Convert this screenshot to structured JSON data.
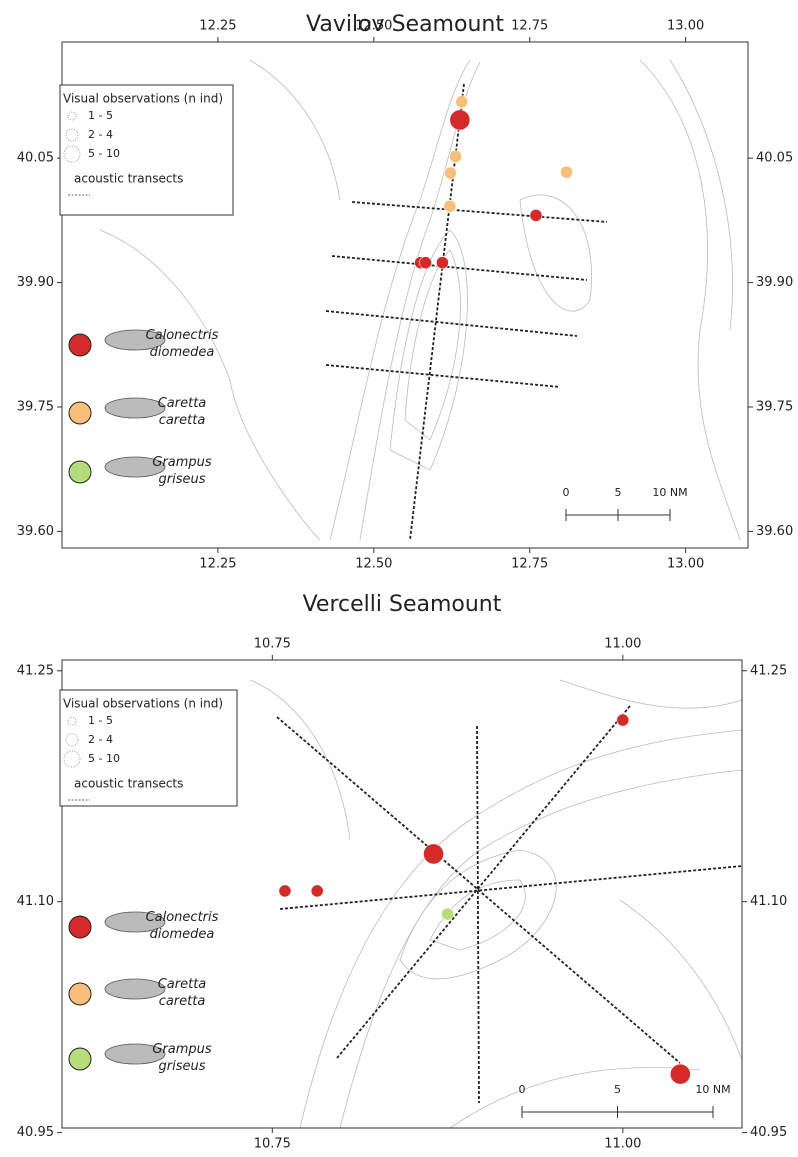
{
  "chart_data": [
    {
      "type": "scatter",
      "title": "Vavilov Seamount",
      "xlim": [
        12.0,
        13.1
      ],
      "ylim": [
        39.58,
        40.19
      ],
      "xticks": [
        12.25,
        {
          "value": 12.5,
          "label": "12.50"
        },
        12.75,
        {
          "value": 13,
          "label": "13.00"
        }
      ],
      "yticks": [
        40.05,
        {
          "value": 39.9,
          "label": "39.90"
        },
        39.75,
        {
          "value": 39.6,
          "label": "39.60"
        }
      ],
      "legend_title": "Visual observations (n ind)",
      "size_legend": [
        "1 - 5",
        "2 - 4",
        "5 - 10"
      ],
      "transect_label": "acoustic transects",
      "scale_bar": [
        "0",
        "5",
        "10 NM"
      ],
      "series": [
        {
          "name": "Calonectris diomedea",
          "color": "#d42a2a",
          "x": [
            12.638,
            12.76,
            12.575,
            12.583,
            12.61
          ],
          "values": [
            40.096,
            39.981,
            39.924,
            39.924,
            39.924
          ],
          "sizes": [
            7,
            2,
            2,
            2,
            2
          ]
        },
        {
          "name": "Caretta caretta",
          "color": "#f7bf7a",
          "x": [
            12.641,
            12.631,
            12.623,
            12.622,
            12.809
          ],
          "values": [
            40.118,
            40.052,
            40.032,
            39.992,
            40.033
          ],
          "sizes": [
            2,
            2,
            2,
            2,
            2
          ]
        },
        {
          "name": "Grampus griseus",
          "color": "#b5dd7a",
          "x": [],
          "values": [],
          "sizes": []
        }
      ]
    },
    {
      "type": "scatter",
      "title": "Vercelli Seamount",
      "xlim": [
        10.6,
        11.085
      ],
      "ylim": [
        40.953,
        41.257
      ],
      "xticks": [
        10.75,
        {
          "value": 11,
          "label": "11.00"
        }
      ],
      "yticks": [
        41.25,
        {
          "value": 41.1,
          "label": "41.10"
        },
        40.95
      ],
      "legend_title": "Visual observations (n ind)",
      "size_legend": [
        "1 - 5",
        "2 - 4",
        "5 - 10"
      ],
      "transect_label": "acoustic transects",
      "scale_bar": [
        "0",
        "5",
        "10 NM"
      ],
      "series": [
        {
          "name": "Calonectris diomedea",
          "color": "#d42a2a",
          "x": [
            11.0,
            10.865,
            10.759,
            10.782,
            11.041
          ],
          "values": [
            41.218,
            41.131,
            41.107,
            41.107,
            40.988
          ],
          "sizes": [
            2,
            7,
            2,
            2,
            7
          ]
        },
        {
          "name": "Caretta caretta",
          "color": "#f7bf7a",
          "x": [],
          "values": [],
          "sizes": []
        },
        {
          "name": "Grampus griseus",
          "color": "#b5dd7a",
          "x": [
            10.875
          ],
          "values": [
            41.092
          ],
          "sizes": [
            2
          ]
        }
      ]
    }
  ]
}
